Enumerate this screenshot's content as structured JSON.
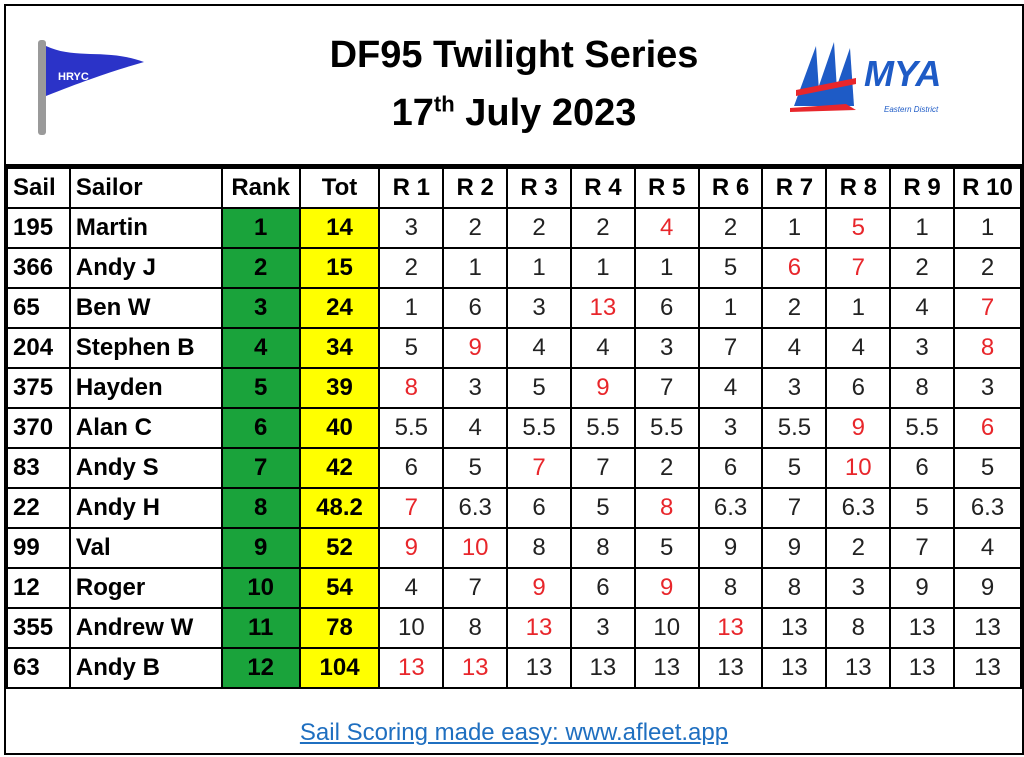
{
  "header": {
    "title": "DF95 Twilight Series",
    "date_day": "17",
    "date_suffix": "th",
    "date_rest": " July 2023",
    "left_logo": {
      "text": "HRYC",
      "color": "#2b33c8"
    },
    "right_logo": {
      "text": "MYA",
      "subtext": "Eastern District",
      "color": "#1e5bc6"
    }
  },
  "colors": {
    "rank_bg": "#1aa33b",
    "tot_bg": "#ffff00",
    "discard": "#e8262b",
    "link": "#1f6fc0"
  },
  "table": {
    "columns": [
      "Sail",
      "Sailor",
      "Rank",
      "Tot",
      "R 1",
      "R 2",
      "R 3",
      "R 4",
      "R 5",
      "R 6",
      "R 7",
      "R 8",
      "R 9",
      "R 10"
    ],
    "rows": [
      {
        "sail": "195",
        "sailor": "Martin",
        "rank": "1",
        "tot": "14",
        "races": [
          "3",
          "2",
          "2",
          "2",
          "4",
          "2",
          "1",
          "5",
          "1",
          "1"
        ],
        "discards": [
          4,
          7
        ]
      },
      {
        "sail": "366",
        "sailor": "Andy J",
        "rank": "2",
        "tot": "15",
        "races": [
          "2",
          "1",
          "1",
          "1",
          "1",
          "5",
          "6",
          "7",
          "2",
          "2"
        ],
        "discards": [
          6,
          7
        ]
      },
      {
        "sail": "65",
        "sailor": "Ben W",
        "rank": "3",
        "tot": "24",
        "races": [
          "1",
          "6",
          "3",
          "13",
          "6",
          "1",
          "2",
          "1",
          "4",
          "7"
        ],
        "discards": [
          3,
          9
        ]
      },
      {
        "sail": "204",
        "sailor": "Stephen B",
        "rank": "4",
        "tot": "34",
        "races": [
          "5",
          "9",
          "4",
          "4",
          "3",
          "7",
          "4",
          "4",
          "3",
          "8"
        ],
        "discards": [
          1,
          9
        ]
      },
      {
        "sail": "375",
        "sailor": "Hayden",
        "rank": "5",
        "tot": "39",
        "races": [
          "8",
          "3",
          "5",
          "9",
          "7",
          "4",
          "3",
          "6",
          "8",
          "3"
        ],
        "discards": [
          0,
          3
        ]
      },
      {
        "sail": "370",
        "sailor": "Alan C",
        "rank": "6",
        "tot": "40",
        "races": [
          "5.5",
          "4",
          "5.5",
          "5.5",
          "5.5",
          "3",
          "5.5",
          "9",
          "5.5",
          "6"
        ],
        "discards": [
          7,
          9
        ]
      },
      {
        "sail": "83",
        "sailor": "Andy S",
        "rank": "7",
        "tot": "42",
        "races": [
          "6",
          "5",
          "7",
          "7",
          "2",
          "6",
          "5",
          "10",
          "6",
          "5"
        ],
        "discards": [
          2,
          7
        ]
      },
      {
        "sail": "22",
        "sailor": "Andy H",
        "rank": "8",
        "tot": "48.2",
        "races": [
          "7",
          "6.3",
          "6",
          "5",
          "8",
          "6.3",
          "7",
          "6.3",
          "5",
          "6.3"
        ],
        "discards": [
          0,
          4
        ]
      },
      {
        "sail": "99",
        "sailor": "Val",
        "rank": "9",
        "tot": "52",
        "races": [
          "9",
          "10",
          "8",
          "8",
          "5",
          "9",
          "9",
          "2",
          "7",
          "4"
        ],
        "discards": [
          0,
          1
        ]
      },
      {
        "sail": "12",
        "sailor": "Roger",
        "rank": "10",
        "tot": "54",
        "races": [
          "4",
          "7",
          "9",
          "6",
          "9",
          "8",
          "8",
          "3",
          "9",
          "9"
        ],
        "discards": [
          2,
          4
        ]
      },
      {
        "sail": "355",
        "sailor": "Andrew W",
        "rank": "11",
        "tot": "78",
        "races": [
          "10",
          "8",
          "13",
          "3",
          "10",
          "13",
          "13",
          "8",
          "13",
          "13"
        ],
        "discards": [
          2,
          5
        ]
      },
      {
        "sail": "63",
        "sailor": "Andy B",
        "rank": "12",
        "tot": "104",
        "races": [
          "13",
          "13",
          "13",
          "13",
          "13",
          "13",
          "13",
          "13",
          "13",
          "13"
        ],
        "discards": [
          0,
          1
        ]
      }
    ]
  },
  "footer": {
    "link_text": "Sail Scoring made easy: www.afleet.app"
  }
}
